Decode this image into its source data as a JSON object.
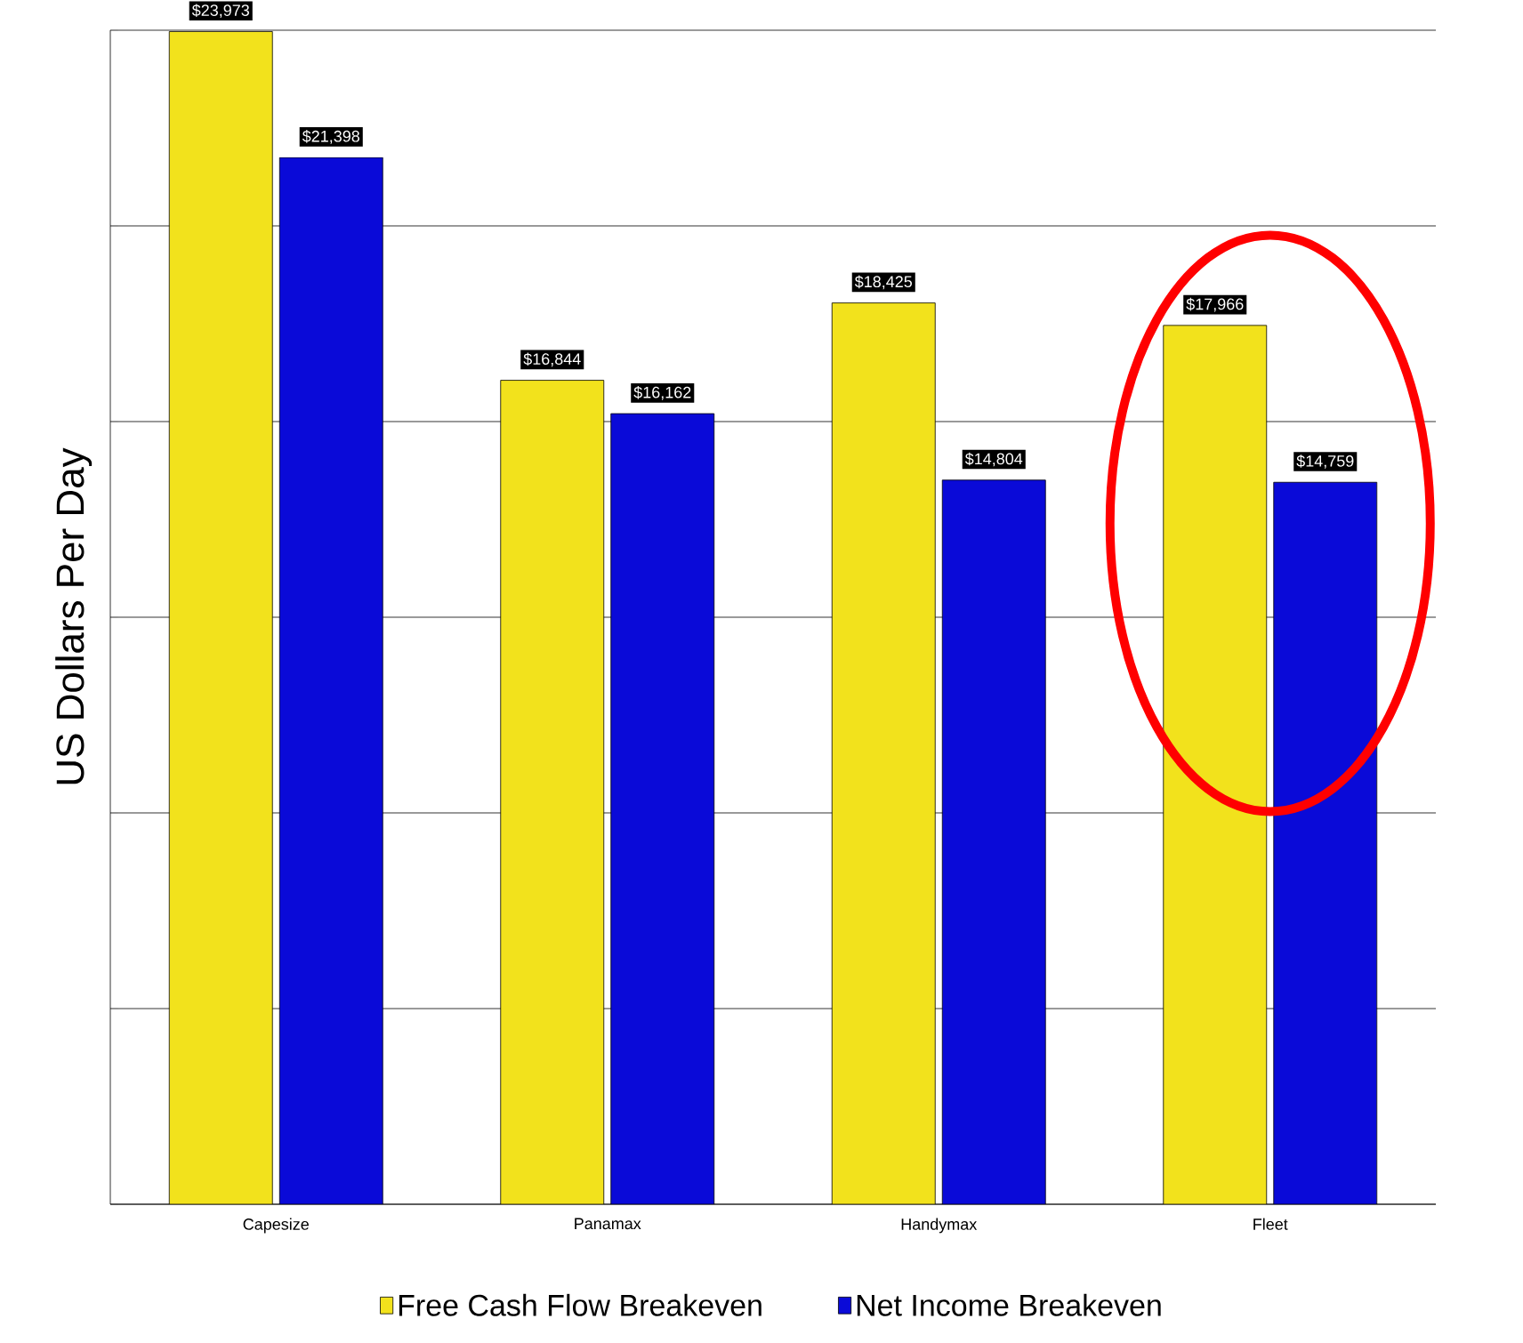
{
  "chart_data": {
    "type": "bar",
    "ylabel": "US Dollars Per Day",
    "categories": [
      "Capesize",
      "Panamax",
      "Handymax",
      "Fleet"
    ],
    "series": [
      {
        "name": "Free Cash Flow Breakeven",
        "color": "#f2e21c",
        "values": [
          23973,
          16844,
          18425,
          17966
        ],
        "value_labels": [
          "$23,973",
          "$16,844",
          "$18,425",
          "$17,966"
        ]
      },
      {
        "name": "Net Income Breakeven",
        "color": "#0a0ad8",
        "values": [
          21398,
          16162,
          14804,
          14759
        ],
        "value_labels": [
          "$21,398",
          "$16,162",
          "$14,804",
          "$14,759"
        ]
      }
    ],
    "ylim": [
      0,
      24000
    ],
    "yticks": [
      {
        "value": 0,
        "label": null
      },
      {
        "value": 4000,
        "label": null
      },
      {
        "value": 8000,
        "label": null
      },
      {
        "value": 12000,
        "label": null
      },
      {
        "value": 16000,
        "label": null
      },
      {
        "value": 20000,
        "label": null
      },
      {
        "value": 24000,
        "label": null
      }
    ],
    "grid": "y",
    "legend": "bottom"
  }
}
